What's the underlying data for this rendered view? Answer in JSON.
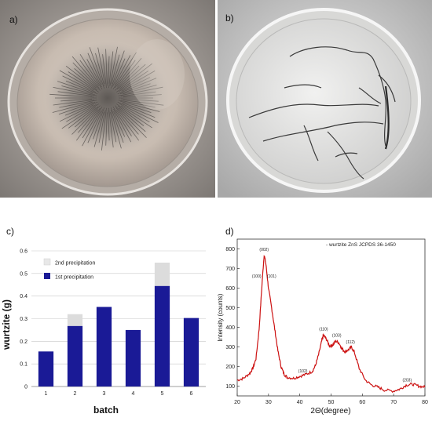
{
  "panels": {
    "a": "a)",
    "b": "b)",
    "c": "c)",
    "d": "d)"
  },
  "chart_data": [
    {
      "type": "bar",
      "stacked": true,
      "title": "",
      "xlabel": "batch",
      "ylabel": "wurtzite (g)",
      "ylim": [
        0,
        0.6
      ],
      "yticks": [
        "0",
        "0.1",
        "0.2",
        "0.3",
        "0.4",
        "0.5",
        "0.6"
      ],
      "categories": [
        "1",
        "2",
        "3",
        "4",
        "5",
        "6"
      ],
      "grid": true,
      "legend_position": "top-left",
      "series": [
        {
          "name": "1st precipitation",
          "color": "#1a1a96",
          "values": [
            0.155,
            0.268,
            0.352,
            0.25,
            0.445,
            0.303
          ]
        },
        {
          "name": "2nd precipitation",
          "color": "#dcdcdc",
          "values": [
            0,
            0.052,
            0,
            0,
            0.103,
            0
          ]
        }
      ]
    },
    {
      "type": "line",
      "title": "",
      "xlabel": "2Θ(degree)",
      "ylabel": "Intensity (counts)",
      "xlim": [
        20,
        80
      ],
      "ylim": [
        50,
        850
      ],
      "xticks": [
        "20",
        "30",
        "40",
        "50",
        "60",
        "70",
        "80"
      ],
      "yticks": [
        "100",
        "200",
        "300",
        "400",
        "500",
        "600",
        "700",
        "800"
      ],
      "legend_text": "- wurtzite ZnS JCPDS 36-1450",
      "color": "#cc1111",
      "x": [
        20,
        22,
        24,
        25,
        26,
        27,
        28,
        28.6,
        29.2,
        30,
        31,
        32,
        33,
        34,
        35,
        36,
        38,
        40,
        42,
        44,
        45,
        46,
        47,
        47.6,
        48.5,
        49.5,
        50.5,
        51.5,
        52.5,
        53.5,
        54.5,
        55.5,
        56.5,
        57.5,
        59,
        61,
        63,
        65,
        67,
        70,
        72,
        74,
        76,
        78,
        80
      ],
      "y": [
        130,
        140,
        165,
        190,
        240,
        390,
        640,
        770,
        720,
        600,
        500,
        390,
        280,
        200,
        160,
        145,
        140,
        150,
        160,
        175,
        205,
        260,
        330,
        360,
        340,
        305,
        310,
        330,
        320,
        290,
        275,
        285,
        300,
        270,
        190,
        130,
        105,
        95,
        80,
        75,
        85,
        105,
        110,
        100,
        95
      ],
      "annotations": [
        {
          "text": "(002)",
          "x": 28.6,
          "y": 790
        },
        {
          "text": "(100)",
          "x": 26.2,
          "y": 655
        },
        {
          "text": "(101)",
          "x": 31.0,
          "y": 655
        },
        {
          "text": "(102)",
          "x": 41.0,
          "y": 170
        },
        {
          "text": "(110)",
          "x": 47.6,
          "y": 385
        },
        {
          "text": "(103)",
          "x": 51.8,
          "y": 352
        },
        {
          "text": "(112)",
          "x": 56.2,
          "y": 318
        },
        {
          "text": "(203)",
          "x": 74.3,
          "y": 125
        }
      ]
    }
  ]
}
